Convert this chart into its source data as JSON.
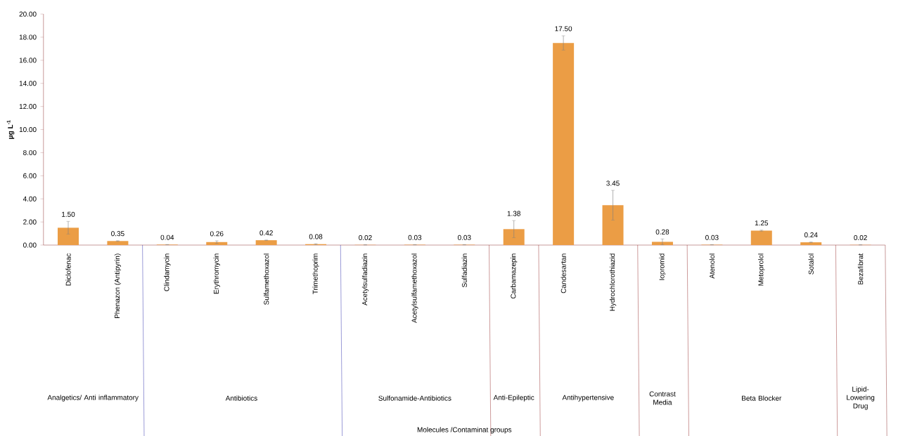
{
  "chart_data": {
    "type": "bar",
    "ylabel": "μg L$^{-1}$",
    "categories": [
      "Diclofenac",
      "Phenazon (Antipyrin)",
      "Clindamycin",
      "Erythromycin",
      "Sulfamethoxazol",
      "Trimethoprim",
      "Acetylsulfadiazin",
      "Acetylsulfamethoxazol",
      "Sulfadiazin",
      "Carbamazepin",
      "Candesartan",
      "Hydrochlorothiazid",
      "Iopromid",
      "Atenolol",
      "Metoprolol",
      "Sotalol",
      "Bezafibrat"
    ],
    "values": [
      1.5,
      0.35,
      0.04,
      0.26,
      0.42,
      0.08,
      0.02,
      0.03,
      0.03,
      1.38,
      17.5,
      3.45,
      0.28,
      0.03,
      1.25,
      0.24,
      0.02
    ],
    "errors": [
      0.55,
      0.03,
      0.01,
      0.11,
      0.02,
      0.04,
      0.01,
      0.01,
      0.01,
      0.74,
      0.62,
      1.29,
      0.25,
      0.01,
      0.05,
      0.03,
      0.01
    ],
    "value_labels": [
      "1.50",
      "0.35",
      "0.04",
      "0.26",
      "0.42",
      "0.08",
      "0.02",
      "0.03",
      "0.03",
      "1.38",
      "17.50",
      "3.45",
      "0.28",
      "0.03",
      "1.25",
      "0.24",
      "0.02"
    ],
    "color": "#eb9d45",
    "ylim": [
      0,
      20
    ],
    "yticks": [
      {
        "value": 0,
        "label": "0.00"
      },
      {
        "value": 2,
        "label": "2.00"
      },
      {
        "value": 4,
        "label": "4.00"
      },
      {
        "value": 6,
        "label": "6.00"
      },
      {
        "value": 8,
        "label": "8.00"
      },
      {
        "value": 10,
        "label": "10.00"
      },
      {
        "value": 12,
        "label": "12.00"
      },
      {
        "value": 14,
        "label": "14.00"
      },
      {
        "value": 16,
        "label": "16.00"
      },
      {
        "value": 18,
        "label": "18.00"
      },
      {
        "value": 20,
        "label": "20.00"
      }
    ],
    "annotations": [
      "Analgetics/ Anti inflammatory",
      "Antibiotics",
      "Sulfonamide-Antibiotics",
      "Anti-Epileptic",
      "Antihypertensive",
      "Contrast Media",
      "Beta Blocker",
      "Lipid-Lowering Drug",
      "Molecules /Contaminat groups"
    ]
  }
}
